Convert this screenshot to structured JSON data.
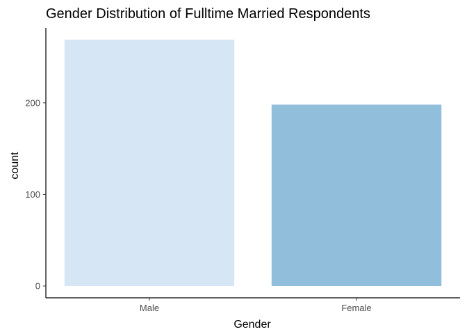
{
  "chart_data": {
    "type": "bar",
    "title": "Gender Distribution of Fulltime Married Respondents",
    "xlabel": "Gender",
    "ylabel": "count",
    "categories": [
      "Male",
      "Female"
    ],
    "values": [
      269,
      198
    ],
    "bar_colors": [
      "#d6e6f4",
      "#91bfdb"
    ],
    "ylim": [
      0,
      280
    ],
    "yticks": [
      0,
      100,
      200
    ],
    "grid": false,
    "legend": "none"
  }
}
